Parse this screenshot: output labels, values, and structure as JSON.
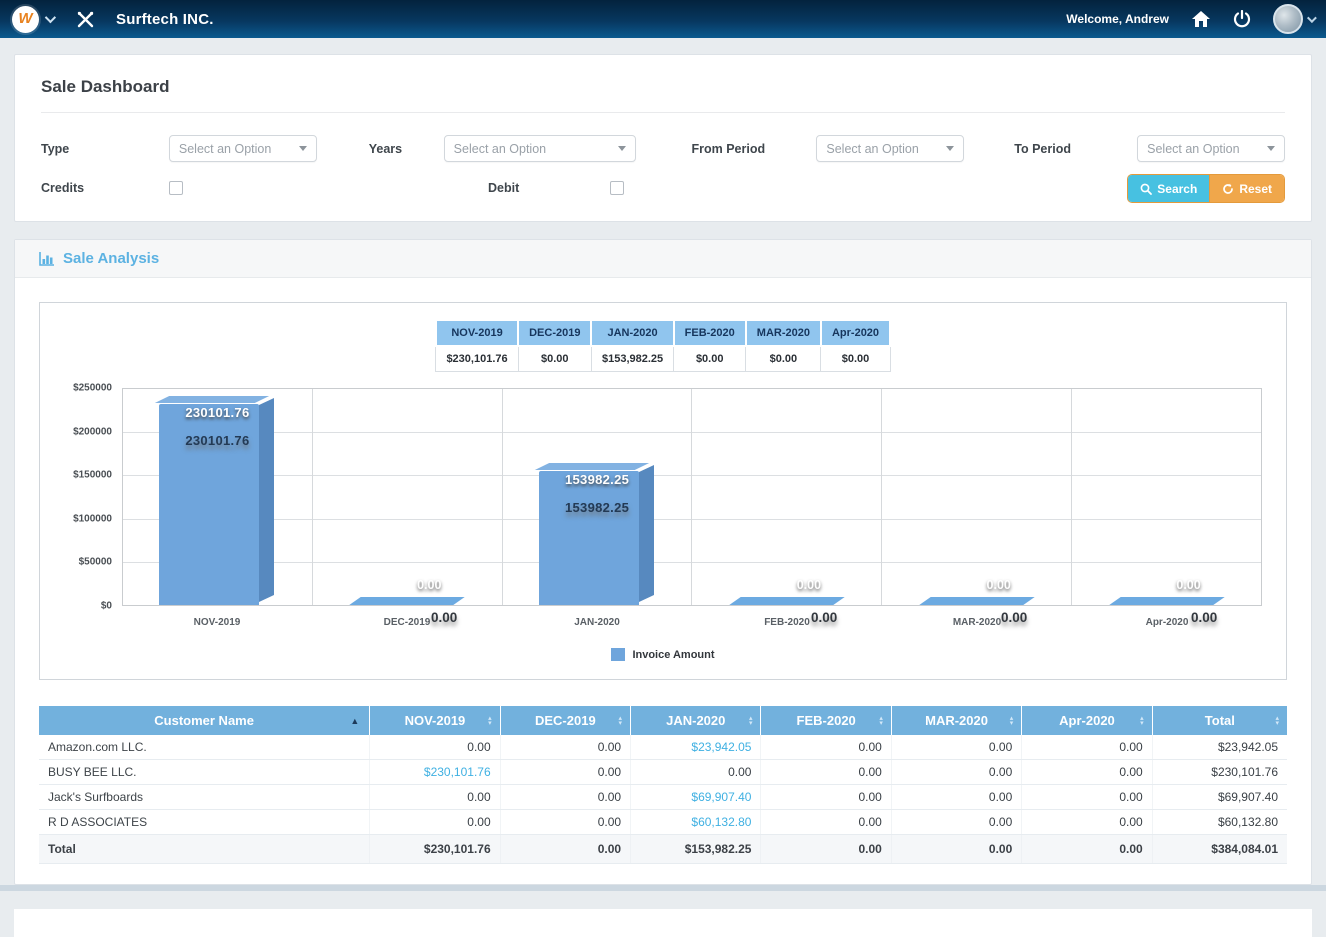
{
  "navbar": {
    "logo_letter": "W",
    "brand": "Surftech INC.",
    "welcome": "Welcome, Andrew"
  },
  "filters": {
    "title": "Sale Dashboard",
    "type_label": "Type",
    "years_label": "Years",
    "from_label": "From Period",
    "to_label": "To Period",
    "credits_label": "Credits",
    "debit_label": "Debit",
    "select_placeholder": "Select an Option",
    "search_label": "Search",
    "reset_label": "Reset"
  },
  "analysis": {
    "title": "Sale Analysis",
    "summary_table": {
      "columns": [
        "NOV-2019",
        "DEC-2019",
        "JAN-2020",
        "FEB-2020",
        "MAR-2020",
        "Apr-2020"
      ],
      "values": [
        "$230,101.76",
        "$0.00",
        "$153,982.25",
        "$0.00",
        "$0.00",
        "$0.00"
      ]
    }
  },
  "chart_data": {
    "type": "bar",
    "categories": [
      "NOV-2019",
      "DEC-2019",
      "JAN-2020",
      "FEB-2020",
      "MAR-2020",
      "Apr-2020"
    ],
    "values": [
      230101.76,
      0,
      153982.25,
      0,
      0,
      0
    ],
    "value_labels": [
      "230101.76",
      "0.00",
      "153982.25",
      "0.00",
      "0.00",
      "0.00"
    ],
    "title": "",
    "xlabel": "",
    "ylabel": "",
    "ylim": [
      0,
      250000
    ],
    "yticks": [
      "$250000",
      "$200000",
      "$150000",
      "$100000",
      "$50000",
      "$0"
    ],
    "grid": true,
    "legend_position": "bottom",
    "legend": [
      "Invoice Amount"
    ],
    "bar_color": "#6fa5dc"
  },
  "table": {
    "columns": [
      "Customer Name",
      "NOV-2019",
      "DEC-2019",
      "JAN-2020",
      "FEB-2020",
      "MAR-2020",
      "Apr-2020",
      "Total"
    ],
    "rows": [
      {
        "name": "Amazon.com LLC.",
        "cells": [
          {
            "v": "0.00"
          },
          {
            "v": "0.00"
          },
          {
            "v": "$23,942.05",
            "link": true
          },
          {
            "v": "0.00"
          },
          {
            "v": "0.00"
          },
          {
            "v": "0.00"
          },
          {
            "v": "$23,942.05"
          }
        ]
      },
      {
        "name": "BUSY BEE LLC.",
        "cells": [
          {
            "v": "$230,101.76",
            "link": true
          },
          {
            "v": "0.00"
          },
          {
            "v": "0.00"
          },
          {
            "v": "0.00"
          },
          {
            "v": "0.00"
          },
          {
            "v": "0.00"
          },
          {
            "v": "$230,101.76"
          }
        ]
      },
      {
        "name": "Jack's Surfboards",
        "cells": [
          {
            "v": "0.00"
          },
          {
            "v": "0.00"
          },
          {
            "v": "$69,907.40",
            "link": true
          },
          {
            "v": "0.00"
          },
          {
            "v": "0.00"
          },
          {
            "v": "0.00"
          },
          {
            "v": "$69,907.40"
          }
        ]
      },
      {
        "name": "R D ASSOCIATES",
        "cells": [
          {
            "v": "0.00"
          },
          {
            "v": "0.00"
          },
          {
            "v": "$60,132.80",
            "link": true
          },
          {
            "v": "0.00"
          },
          {
            "v": "0.00"
          },
          {
            "v": "0.00"
          },
          {
            "v": "$60,132.80"
          }
        ]
      }
    ],
    "total_row": {
      "name": "Total",
      "cells": [
        "$230,101.76",
        "0.00",
        "$153,982.25",
        "0.00",
        "0.00",
        "0.00",
        "$384,084.01"
      ]
    }
  }
}
